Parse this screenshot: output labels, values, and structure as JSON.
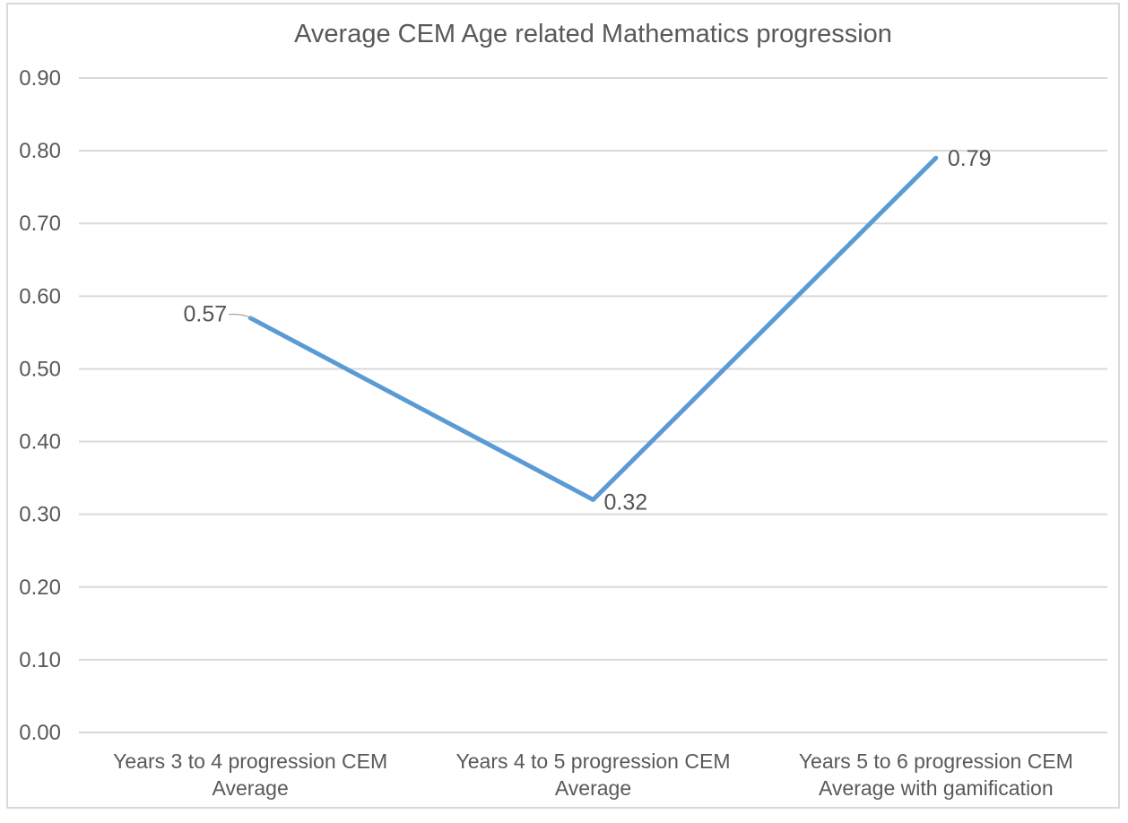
{
  "chart_data": {
    "type": "line",
    "title": "Average CEM Age related Mathematics progression",
    "categories": [
      "Years 3 to 4 progression CEM Average",
      "Years 4 to 5 progression CEM Average",
      "Years 5 to 6 progression CEM Average with gamification"
    ],
    "values": [
      0.57,
      0.32,
      0.79
    ],
    "data_labels": [
      "0.57",
      "0.32",
      "0.79"
    ],
    "xlabel": "",
    "ylabel": "",
    "ylim": [
      0.0,
      0.9
    ],
    "ytick_step": 0.1,
    "ytick_labels": [
      "0.00",
      "0.10",
      "0.20",
      "0.30",
      "0.40",
      "0.50",
      "0.60",
      "0.70",
      "0.80",
      "0.90"
    ],
    "grid": true,
    "legend_position": "none",
    "colors": {
      "line": "#5B9BD5",
      "gridline": "#D9D9D9",
      "chart_border": "#D9D9D9",
      "text": "#595959",
      "data_label_text": "#555555",
      "leader_line": "#A6A6A6",
      "background": "#FFFFFF"
    }
  }
}
